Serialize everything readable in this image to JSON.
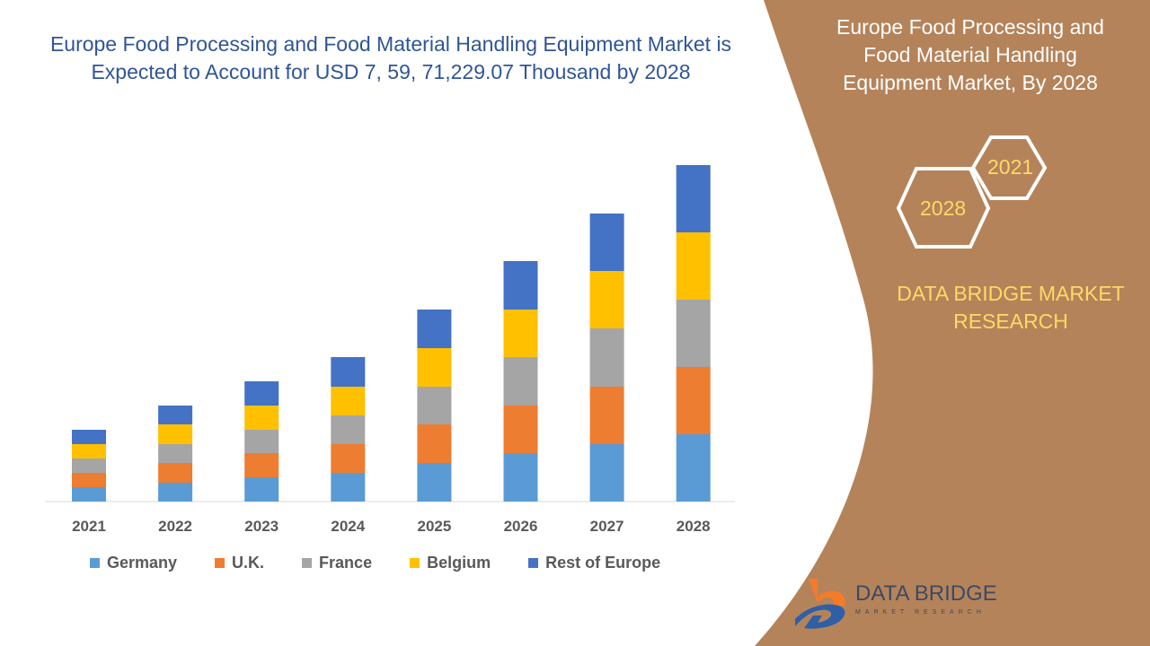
{
  "header": {
    "title_line1": "Europe Food Processing and Food Material Handling Equipment Market is",
    "title_line2": "Expected to Account for USD 7, 59, 71,229.07 Thousand by 2028"
  },
  "side": {
    "title_line1": "Europe Food Processing and",
    "title_line2": "Food Material Handling",
    "title_line3": "Equipment Market, By 2028",
    "hex_start": "2021",
    "hex_end": "2028",
    "brand_line1": "DATA BRIDGE MARKET",
    "brand_line2": "RESEARCH",
    "logo_name": "DATA BRIDGE",
    "logo_sub": "MARKET RESEARCH"
  },
  "colors": {
    "panel": "#B5835A",
    "title": "#2F5597",
    "accent": "#FFD966"
  },
  "chart_data": {
    "type": "bar",
    "stacked": true,
    "categories": [
      "2021",
      "2022",
      "2023",
      "2024",
      "2025",
      "2026",
      "2027",
      "2028"
    ],
    "series": [
      {
        "name": "Germany",
        "color": "#5B9BD5",
        "values": [
          16,
          21,
          27,
          32,
          43,
          54,
          64,
          75
        ]
      },
      {
        "name": "U.K.",
        "color": "#ED7D31",
        "values": [
          16,
          22,
          27,
          32,
          43,
          53,
          64,
          75
        ]
      },
      {
        "name": "France",
        "color": "#A5A5A5",
        "values": [
          16,
          21,
          26,
          32,
          42,
          54,
          65,
          75
        ]
      },
      {
        "name": "Belgium",
        "color": "#FFC000",
        "values": [
          16,
          22,
          27,
          32,
          43,
          53,
          64,
          75
        ]
      },
      {
        "name": "Rest of Europe",
        "color": "#4472C4",
        "values": [
          16,
          21,
          27,
          33,
          43,
          54,
          64,
          75
        ]
      }
    ],
    "title": "",
    "xlabel": "",
    "ylabel": "",
    "grid": false,
    "legend": "bottom",
    "yaxis_shown": false,
    "ylim": [
      0,
      375
    ]
  }
}
